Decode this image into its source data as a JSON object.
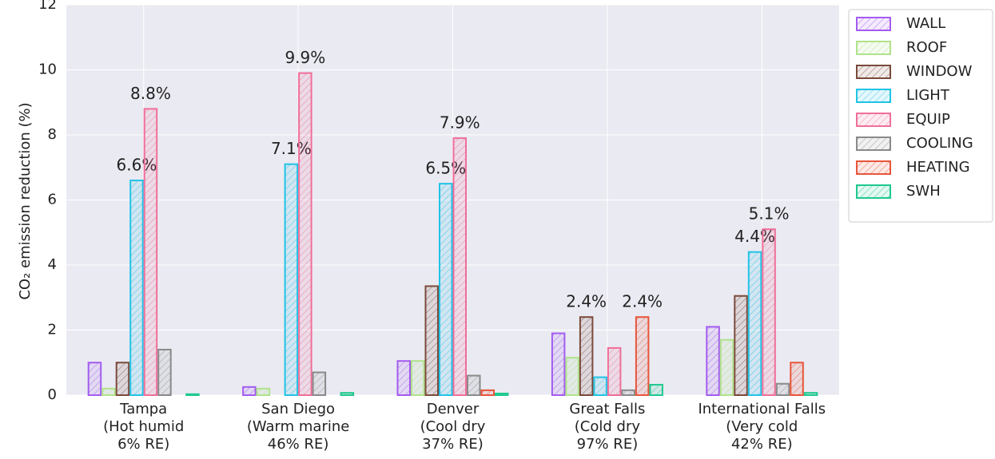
{
  "chart_data": {
    "type": "bar",
    "ylabel": "CO₂ emission reduction (%)",
    "categories": [
      [
        "Tampa",
        "(Hot humid",
        "6% RE)"
      ],
      [
        "San Diego",
        "(Warm marine",
        "46% RE)"
      ],
      [
        "Denver",
        "(Cool dry",
        "37% RE)"
      ],
      [
        "Great Falls",
        "(Cold dry",
        "97% RE)"
      ],
      [
        "International Falls",
        "(Very cold",
        "42% RE)"
      ]
    ],
    "series": [
      {
        "name": "WALL",
        "color": "#a35cf0",
        "values": [
          1.0,
          0.25,
          1.05,
          1.9,
          2.1
        ]
      },
      {
        "name": "ROOF",
        "color": "#b0e38a",
        "values": [
          0.2,
          0.2,
          1.05,
          1.15,
          1.7
        ]
      },
      {
        "name": "WINDOW",
        "color": "#7b4a3a",
        "values": [
          1.0,
          0.0,
          3.35,
          2.4,
          3.05
        ],
        "value_labels": [
          null,
          null,
          null,
          "2.4%",
          null
        ]
      },
      {
        "name": "LIGHT",
        "color": "#22c3e6",
        "values": [
          6.6,
          7.1,
          6.5,
          0.55,
          4.4
        ],
        "value_labels": [
          "6.6%",
          "7.1%",
          "6.5%",
          null,
          "4.4%"
        ]
      },
      {
        "name": "EQUIP",
        "color": "#f06e98",
        "values": [
          8.8,
          9.9,
          7.9,
          1.45,
          5.1
        ],
        "value_labels": [
          "8.8%",
          "9.9%",
          "7.9%",
          null,
          "5.1%"
        ]
      },
      {
        "name": "COOLING",
        "color": "#8a8a8a",
        "values": [
          1.4,
          0.7,
          0.6,
          0.15,
          0.35
        ]
      },
      {
        "name": "HEATING",
        "color": "#e8553a",
        "values": [
          0.0,
          0.0,
          0.15,
          2.4,
          1.0
        ],
        "value_labels": [
          null,
          null,
          null,
          "2.4%",
          null
        ]
      },
      {
        "name": "SWH",
        "color": "#1ec98e",
        "values": [
          0.03,
          0.07,
          0.05,
          0.32,
          0.07
        ]
      }
    ],
    "ylim": [
      0,
      12
    ],
    "yticks": [
      0,
      2,
      4,
      6,
      8,
      10,
      12
    ],
    "grid": true,
    "legend": "outside right"
  }
}
